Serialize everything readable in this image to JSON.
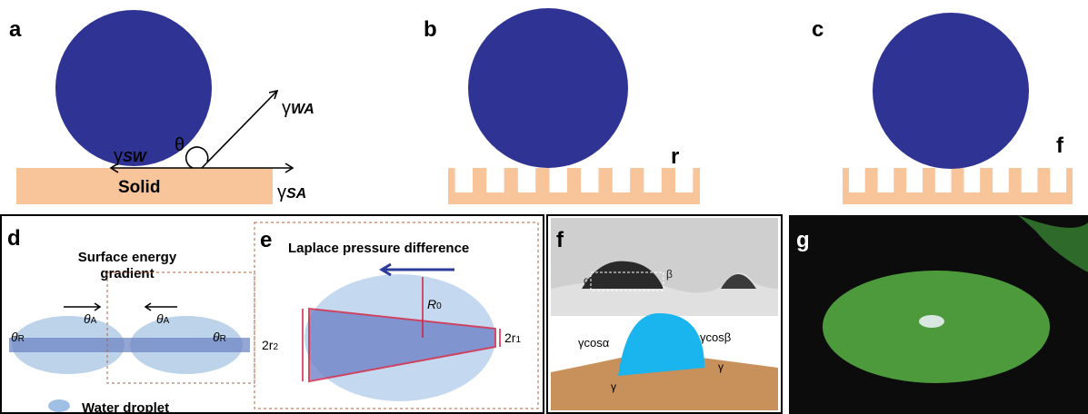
{
  "panels": {
    "a": {
      "label": "a",
      "solid": "Solid",
      "gamma_sw": {
        "symbol": "γ",
        "sub": "SW"
      },
      "theta": "θ",
      "gamma_wa": {
        "symbol": "γ",
        "sub": "WA"
      },
      "gamma_sa": {
        "symbol": "γ",
        "sub": "SA"
      }
    },
    "b": {
      "label": "b",
      "marker": "r"
    },
    "c": {
      "label": "c",
      "marker": "f"
    },
    "d": {
      "label": "d",
      "title": [
        "Surface energy",
        "gradient"
      ],
      "angles": [
        {
          "symbol": "θ",
          "sub": "R"
        },
        {
          "symbol": "θ",
          "sub": "A"
        },
        {
          "symbol": "θ",
          "sub": "A"
        },
        {
          "symbol": "θ",
          "sub": "R"
        }
      ],
      "legend": "Water droplet"
    },
    "e": {
      "label": "e",
      "title": "Laplace pressure difference",
      "radius": {
        "symbol": "R",
        "sub": "0"
      },
      "left": {
        "symbol": "2r",
        "sub": "2"
      },
      "right": {
        "symbol": "2r",
        "sub": "1"
      }
    },
    "f": {
      "label": "f",
      "alpha": "α",
      "beta": "β",
      "left": "γcosα",
      "right": "γcosβ",
      "gamma_left": "γ",
      "gamma_right": "γ"
    },
    "g": {
      "label": "g"
    }
  }
}
